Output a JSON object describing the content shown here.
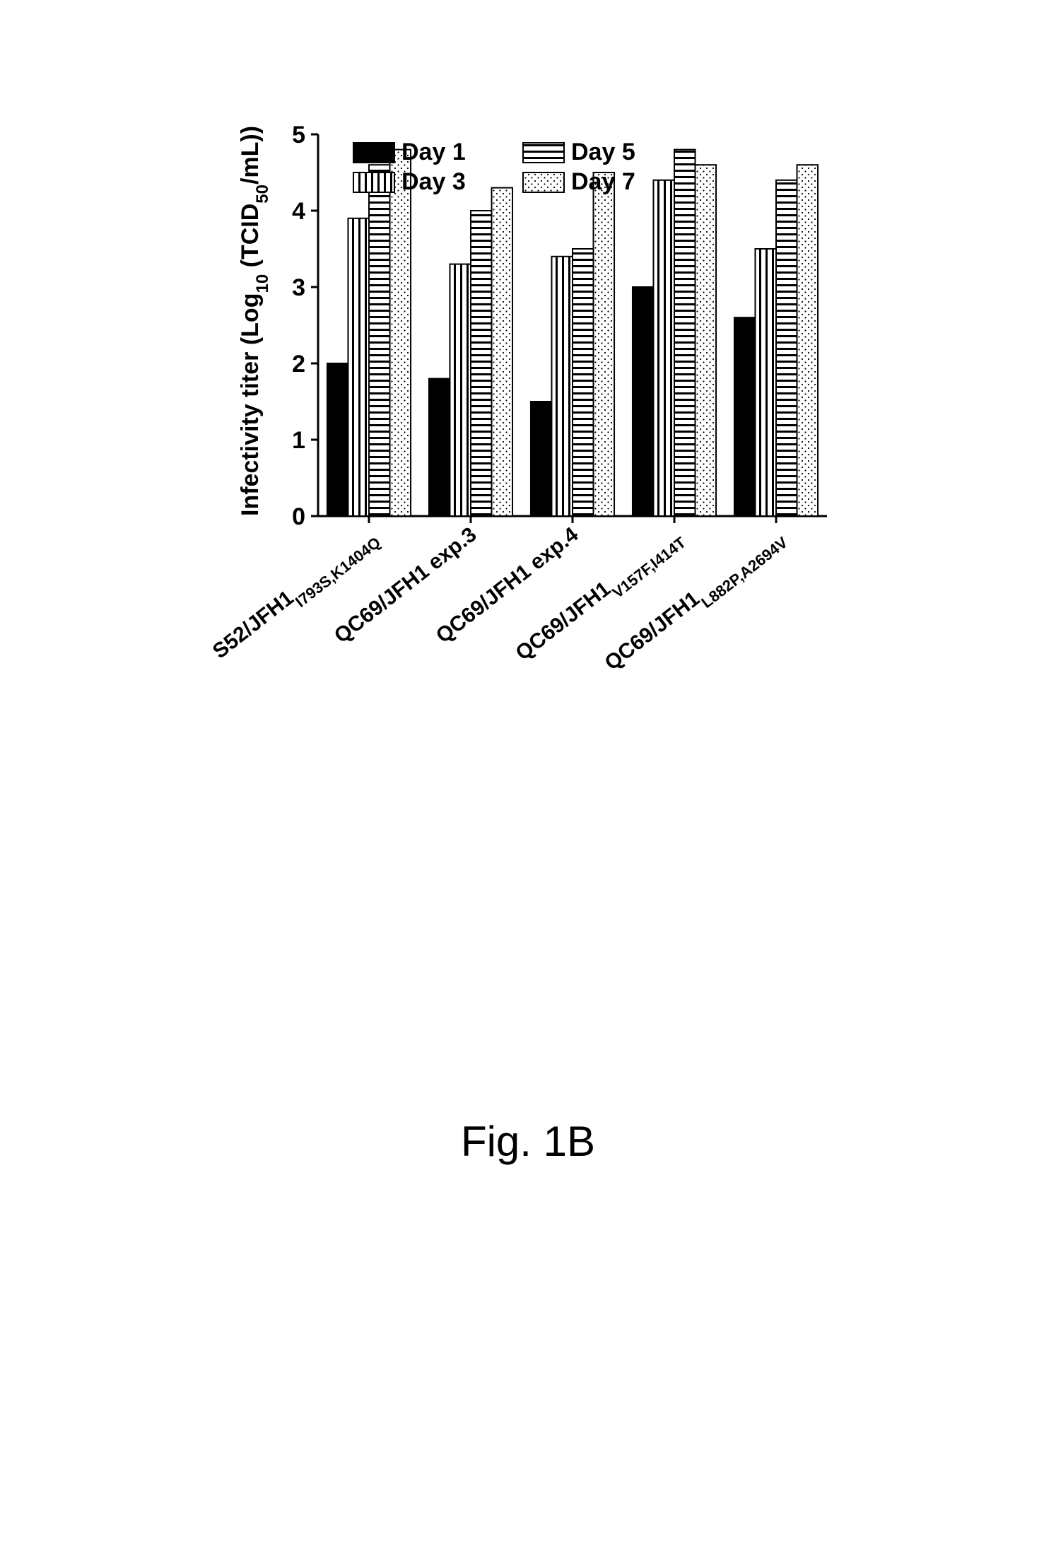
{
  "figure_label": "Fig. 1B",
  "chart": {
    "type": "bar",
    "y_axis": {
      "label": "Infectivity titer (Log",
      "label_sub": "10",
      "label_tail": " (TCID",
      "label_sub2": "50",
      "label_tail2": "/mL))",
      "min": 0,
      "max": 5,
      "tick_step": 1,
      "ticks": [
        0,
        1,
        2,
        3,
        4,
        5
      ],
      "label_fontsize": 34,
      "tick_fontsize": 34,
      "axis_color": "#000000",
      "axis_width": 3
    },
    "categories": [
      {
        "main": "S52/JFH1",
        "sub": "I793S,K1404Q"
      },
      {
        "main": "QC69/JFH1 exp.3",
        "sub": ""
      },
      {
        "main": "QC69/JFH1 exp.4",
        "sub": ""
      },
      {
        "main": "QC69/JFH1",
        "sub": "V157F,I414T"
      },
      {
        "main": "QC69/JFH1",
        "sub": "L882P,A2694V"
      }
    ],
    "category_label_fontsize_main": 30,
    "category_label_fontsize_sub": 22,
    "category_label_angle": -38,
    "series": [
      {
        "key": "day1",
        "label": "Day 1",
        "pattern": "solid",
        "fg": "#000000",
        "bg": "#000000"
      },
      {
        "key": "day3",
        "label": "Day 3",
        "pattern": "vstripes",
        "fg": "#000000",
        "bg": "#ffffff"
      },
      {
        "key": "day5",
        "label": "Day 5",
        "pattern": "hstripes",
        "fg": "#000000",
        "bg": "#ffffff"
      },
      {
        "key": "day7",
        "label": "Day 7",
        "pattern": "dots",
        "fg": "#000000",
        "bg": "#ffffff"
      }
    ],
    "values": {
      "day1": [
        2.0,
        1.8,
        1.5,
        3.0,
        2.6
      ],
      "day3": [
        3.9,
        3.3,
        3.4,
        4.4,
        3.5
      ],
      "day5": [
        4.6,
        4.0,
        3.5,
        4.8,
        4.4
      ],
      "day7": [
        4.8,
        4.3,
        4.5,
        4.6,
        4.6
      ]
    },
    "legend": {
      "fontsize": 34,
      "swatch_w": 58,
      "swatch_h": 28,
      "pos": "inside-top"
    },
    "plot": {
      "background": "#ffffff",
      "bar_border_color": "#000000",
      "bar_border_width": 2,
      "group_width_ratio": 0.82,
      "bar_gap_within_group": 0
    }
  }
}
